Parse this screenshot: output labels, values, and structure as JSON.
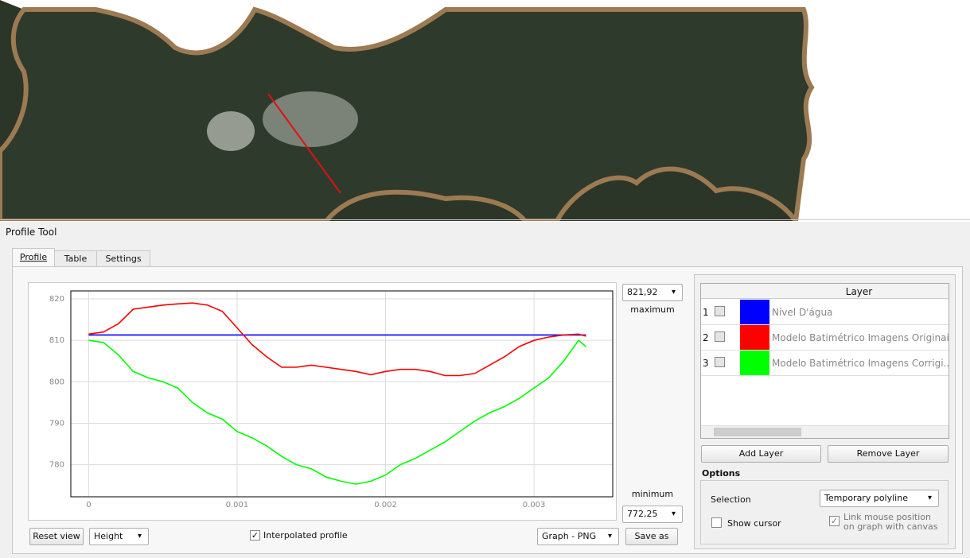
{
  "panel_title": "Profile Tool",
  "tabs": [
    "Profile",
    "Table",
    "Settings"
  ],
  "chart_data": {
    "type": "line",
    "x": [
      0,
      0.0001,
      0.0002,
      0.0003,
      0.0004,
      0.0005,
      0.0006,
      0.0007,
      0.0008,
      0.0009,
      0.001,
      0.0011,
      0.0012,
      0.0013,
      0.0014,
      0.0015,
      0.0016,
      0.0017,
      0.0018,
      0.0019,
      0.002,
      0.0021,
      0.0022,
      0.0023,
      0.0024,
      0.0025,
      0.0026,
      0.0027,
      0.0028,
      0.0029,
      0.003,
      0.0031,
      0.0032,
      0.0033,
      0.00335
    ],
    "series": [
      {
        "name": "Nível D'água",
        "color": "#0000ff",
        "values": [
          811.3,
          811.3,
          811.3,
          811.3,
          811.3,
          811.3,
          811.3,
          811.3,
          811.3,
          811.3,
          811.3,
          811.3,
          811.3,
          811.3,
          811.3,
          811.3,
          811.3,
          811.3,
          811.3,
          811.3,
          811.3,
          811.3,
          811.3,
          811.3,
          811.3,
          811.3,
          811.3,
          811.3,
          811.3,
          811.3,
          811.3,
          811.3,
          811.3,
          811.3,
          811.3
        ]
      },
      {
        "name": "Modelo Batimétrico Imagens Originais",
        "color": "#ff0000",
        "values": [
          811.5,
          812,
          814,
          817.5,
          818,
          818.5,
          818.8,
          819,
          818.5,
          817,
          813,
          809,
          806,
          803.5,
          803.5,
          804,
          803.5,
          803,
          802.5,
          801.7,
          802.5,
          803,
          803,
          802.5,
          801.5,
          801.5,
          802,
          804,
          806,
          808.5,
          810,
          810.8,
          811.3,
          811.5,
          811
        ]
      },
      {
        "name": "Modelo Batimétrico Imagens Corrigi...",
        "color": "#00ff00",
        "values": [
          810,
          809.5,
          806.5,
          802.5,
          801,
          800,
          798.5,
          795,
          792.5,
          791,
          788,
          786.5,
          784.5,
          782,
          780,
          779,
          777,
          776,
          775.3,
          776,
          777.5,
          780,
          781.5,
          783.5,
          785.5,
          788,
          790.5,
          792.5,
          794,
          796,
          798.5,
          801,
          805,
          810,
          808.5
        ]
      }
    ],
    "xlim": [
      -0.00012,
      0.00353
    ],
    "ylim": [
      772.25,
      821.92
    ],
    "xticks": [
      0,
      0.001,
      0.002,
      0.003
    ],
    "yticks": [
      780,
      790,
      800,
      810,
      820
    ],
    "grid": true
  },
  "range_controls": {
    "maximum_value": "821,92",
    "maximum_label": "maximum",
    "minimum_label": "minimum",
    "minimum_value": "772,25"
  },
  "bottom_controls": {
    "reset_view": "Reset view",
    "mode": "Height",
    "interpolated": "Interpolated profile",
    "export_format": "Graph - PNG",
    "save_as": "Save as"
  },
  "layers_panel": {
    "header": "Layer",
    "row_numbers": [
      1,
      2,
      3
    ],
    "add_layer": "Add Layer",
    "remove_layer": "Remove Layer"
  },
  "options": {
    "title": "Options",
    "selection_label": "Selection",
    "selection_value": "Temporary polyline",
    "show_cursor": "Show cursor",
    "link_mouse": [
      "Link mouse position",
      "on graph with canvas"
    ]
  }
}
